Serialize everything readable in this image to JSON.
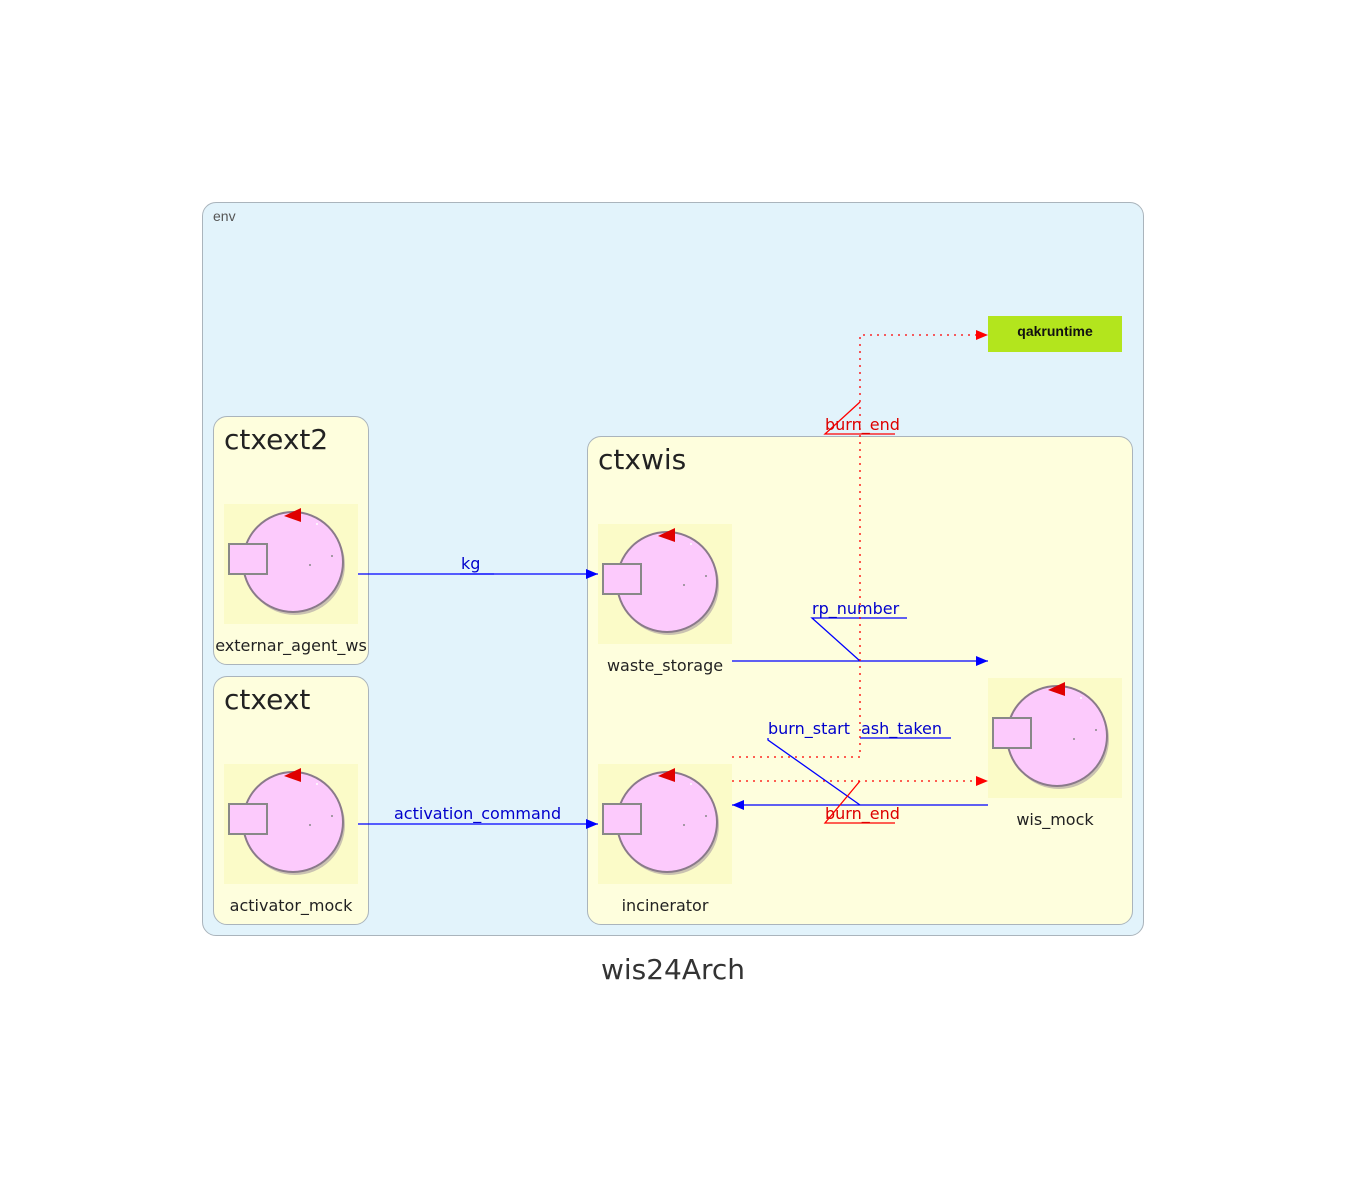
{
  "diagram": {
    "title": "wis24Arch",
    "env_label": "env",
    "runtime_label": "qakruntime",
    "contexts": {
      "ctxext2": "ctxext2",
      "ctxext": "ctxext",
      "ctxwis": "ctxwis"
    },
    "actors": {
      "externar_agent_ws": "externar_agent_ws",
      "activator_mock": "activator_mock",
      "waste_storage": "waste_storage",
      "incinerator": "incinerator",
      "wis_mock": "wis_mock"
    },
    "edges": {
      "kg": "kg",
      "activation_command": "activation_command",
      "rp_number": "rp_number",
      "burn_start": "burn_start",
      "ash_taken": "ash_taken",
      "burn_end_top": "burn_end",
      "burn_end_bottom": "burn_end"
    },
    "colors": {
      "env_bg": "#e2f3fb",
      "context_bg": "#fefedd",
      "actor_fill": "#fccafc",
      "request_edge": "#0000ff",
      "event_edge": "#ff0000",
      "runtime_bg": "#b3e51d"
    }
  }
}
